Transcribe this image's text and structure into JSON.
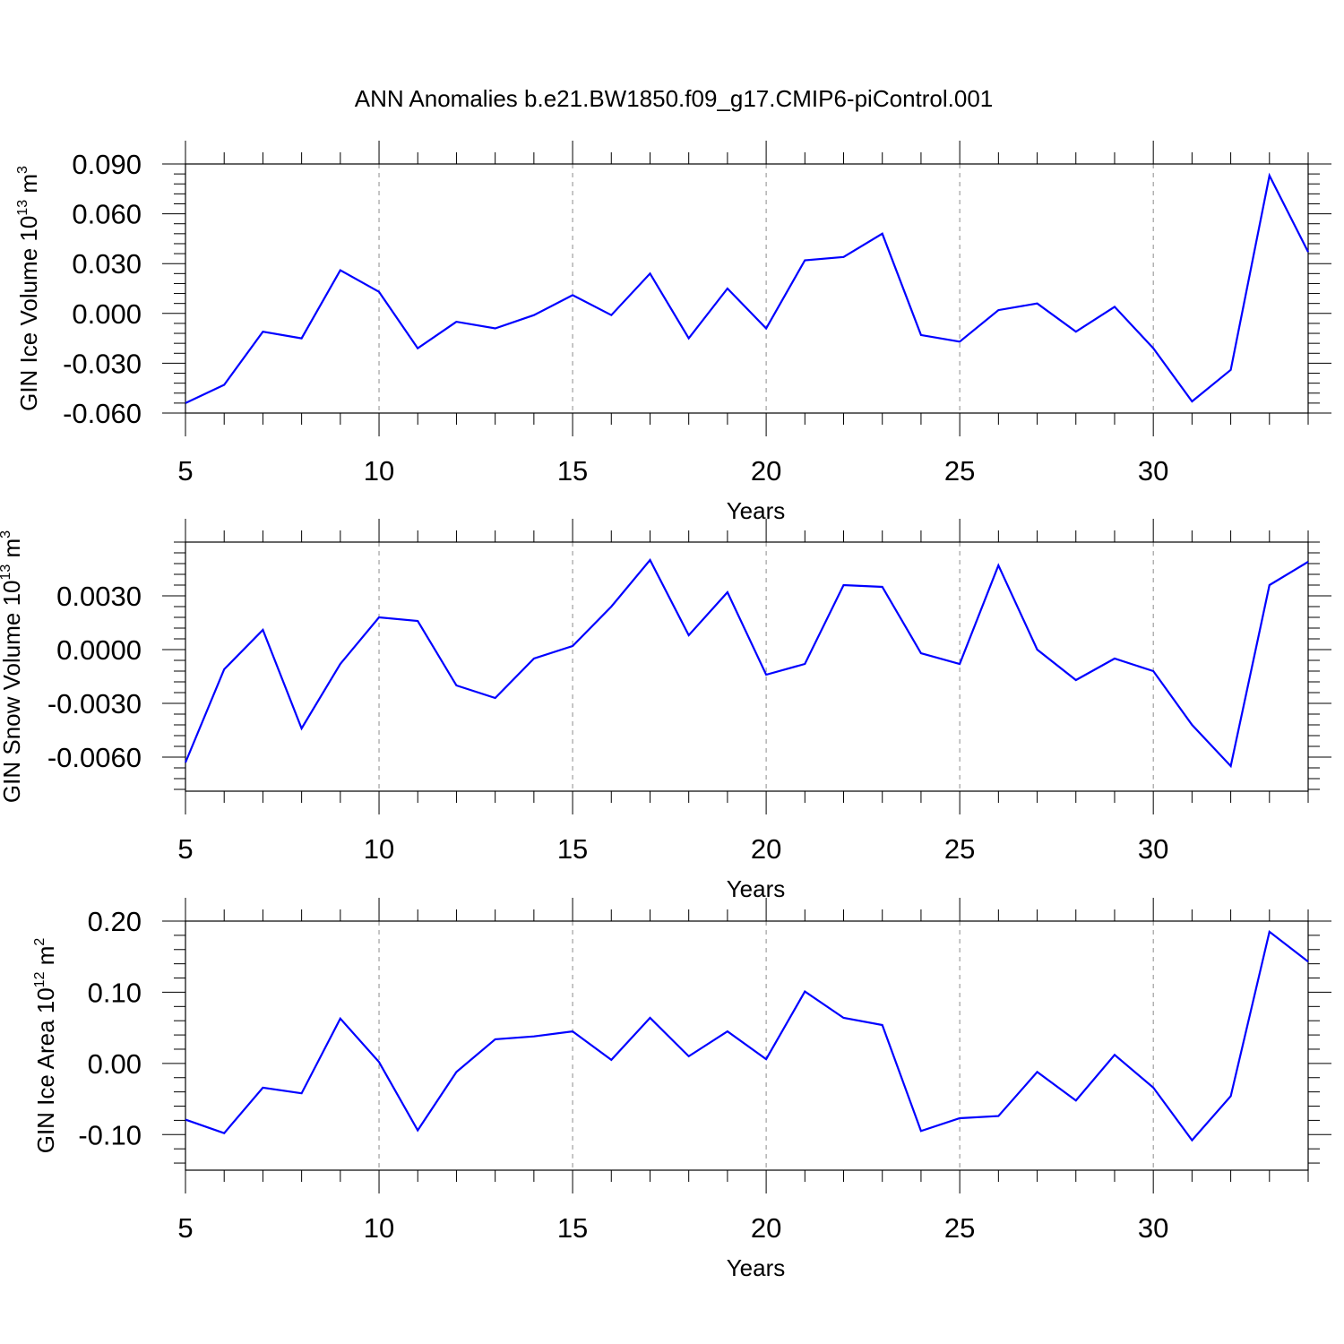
{
  "title": "ANN Anomalies b.e21.BW1850.f09_g17.CMIP6-piControl.001",
  "colors": {
    "line": "#0000ff",
    "frame": "#000000",
    "grid": "#8c8c8c"
  },
  "chart_data": [
    {
      "type": "line",
      "ylabel_main": "GIN Ice Volume 10",
      "ylabel_sup": "13",
      "ylabel_unit": " m",
      "ylabel_unit_sup": "3",
      "xlabel": "Years",
      "xlim": [
        5,
        34
      ],
      "ylim": [
        -0.06,
        0.09
      ],
      "x_ticks": [
        5,
        10,
        15,
        20,
        25,
        30
      ],
      "x_tick_labels": [
        "5",
        "10",
        "15",
        "20",
        "25",
        "30"
      ],
      "y_ticks": [
        -0.06,
        -0.03,
        0.0,
        0.03,
        0.06,
        0.09
      ],
      "y_tick_labels": [
        "-0.060",
        "-0.030",
        "0.000",
        "0.030",
        "0.060",
        "0.090"
      ],
      "grid": "vertical dashed at major x ticks",
      "x": [
        5,
        6,
        7,
        8,
        9,
        10,
        11,
        12,
        13,
        14,
        15,
        16,
        17,
        18,
        19,
        20,
        21,
        22,
        23,
        24,
        25,
        26,
        27,
        28,
        29,
        30,
        31,
        32,
        33,
        34
      ],
      "values": [
        -0.054,
        -0.043,
        -0.011,
        -0.015,
        0.026,
        0.013,
        -0.021,
        -0.005,
        -0.009,
        -0.001,
        0.011,
        -0.001,
        0.024,
        -0.015,
        0.015,
        -0.009,
        0.032,
        0.034,
        0.048,
        -0.013,
        -0.017,
        0.002,
        0.006,
        -0.011,
        0.004,
        -0.021,
        -0.053,
        -0.034,
        0.083,
        0.037
      ]
    },
    {
      "type": "line",
      "ylabel_main": "GIN Snow Volume 10",
      "ylabel_sup": "13",
      "ylabel_unit": " m",
      "ylabel_unit_sup": "3",
      "xlabel": "Years",
      "xlim": [
        5,
        34
      ],
      "ylim": [
        -0.0079,
        0.006
      ],
      "x_ticks": [
        5,
        10,
        15,
        20,
        25,
        30
      ],
      "x_tick_labels": [
        "5",
        "10",
        "15",
        "20",
        "25",
        "30"
      ],
      "y_ticks": [
        -0.006,
        -0.003,
        0.0,
        0.003
      ],
      "y_tick_labels": [
        "-0.0060",
        "-0.0030",
        "0.0000",
        "0.0030"
      ],
      "grid": "vertical dashed at major x ticks",
      "x": [
        5,
        6,
        7,
        8,
        9,
        10,
        11,
        12,
        13,
        14,
        15,
        16,
        17,
        18,
        19,
        20,
        21,
        22,
        23,
        24,
        25,
        26,
        27,
        28,
        29,
        30,
        31,
        32,
        33,
        34
      ],
      "values": [
        -0.0063,
        -0.0011,
        0.0011,
        -0.0044,
        -0.0008,
        0.0018,
        0.0016,
        -0.002,
        -0.0027,
        -0.0005,
        0.0002,
        0.0024,
        0.005,
        0.0008,
        0.0032,
        -0.0014,
        -0.0008,
        0.0036,
        0.0035,
        -0.0002,
        -0.0008,
        0.0047,
        0.0,
        -0.0017,
        -0.0005,
        -0.0012,
        -0.0042,
        -0.0065,
        0.0036,
        0.0049
      ]
    },
    {
      "type": "line",
      "ylabel_main": "GIN Ice Area 10",
      "ylabel_sup": "12",
      "ylabel_unit": " m",
      "ylabel_unit_sup": "2",
      "xlabel": "Years",
      "xlim": [
        5,
        34
      ],
      "ylim": [
        -0.15,
        0.2
      ],
      "x_ticks": [
        5,
        10,
        15,
        20,
        25,
        30
      ],
      "x_tick_labels": [
        "5",
        "10",
        "15",
        "20",
        "25",
        "30"
      ],
      "y_ticks": [
        -0.1,
        0.0,
        0.1,
        0.2
      ],
      "y_tick_labels": [
        "-0.10",
        "0.00",
        "0.10",
        "0.20"
      ],
      "grid": "vertical dashed at major x ticks",
      "x": [
        5,
        6,
        7,
        8,
        9,
        10,
        11,
        12,
        13,
        14,
        15,
        16,
        17,
        18,
        19,
        20,
        21,
        22,
        23,
        24,
        25,
        26,
        27,
        28,
        29,
        30,
        31,
        32,
        33,
        34
      ],
      "values": [
        -0.079,
        -0.098,
        -0.034,
        -0.042,
        0.063,
        0.002,
        -0.094,
        -0.012,
        0.034,
        0.038,
        0.045,
        0.005,
        0.064,
        0.01,
        0.045,
        0.006,
        0.101,
        0.064,
        0.054,
        -0.095,
        -0.077,
        -0.074,
        -0.012,
        -0.052,
        0.012,
        -0.034,
        -0.108,
        -0.046,
        0.185,
        0.143
      ]
    }
  ]
}
